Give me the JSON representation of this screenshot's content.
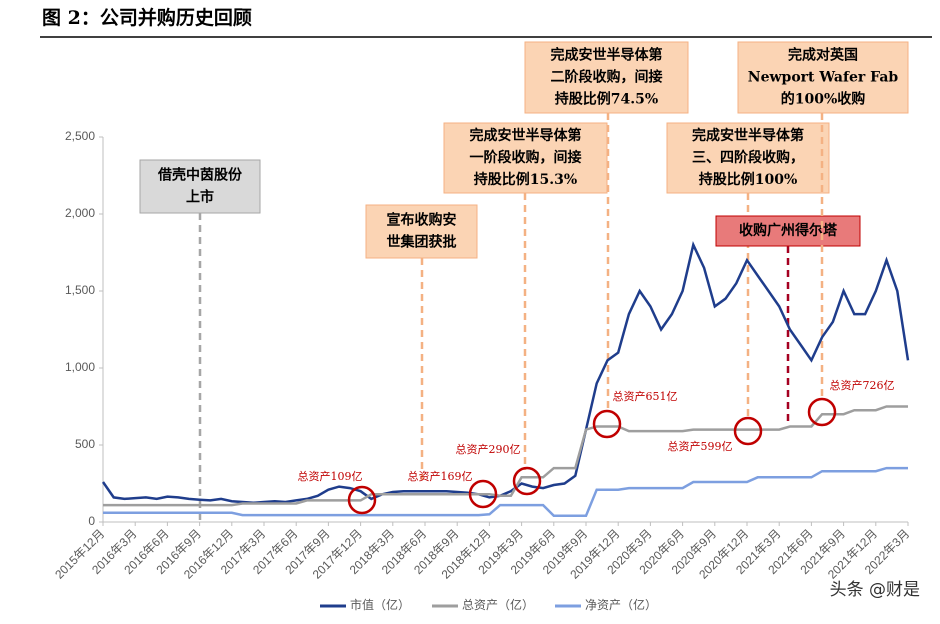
{
  "chart_data": {
    "type": "line",
    "title": "图 2：公司并购历史回顾",
    "categories": [
      "2015年12月",
      null,
      null,
      "2016年3月",
      null,
      null,
      "2016年6月",
      null,
      null,
      "2016年9月",
      null,
      null,
      "2016年12月",
      null,
      null,
      "2017年3月",
      null,
      null,
      "2017年6月",
      null,
      null,
      "2017年9月",
      null,
      null,
      "2017年12月",
      null,
      null,
      "2018年3月",
      null,
      null,
      "2018年6月",
      null,
      null,
      "2018年9月",
      null,
      null,
      "2018年12月",
      null,
      null,
      "2019年3月",
      null,
      null,
      "2019年6月",
      null,
      null,
      "2019年9月",
      null,
      null,
      "2019年12月",
      null,
      null,
      "2020年3月",
      null,
      null,
      "2020年6月",
      null,
      null,
      "2020年9月",
      null,
      null,
      "2020年12月",
      null,
      null,
      "2021年3月",
      null,
      null,
      "2021年6月",
      null,
      null,
      "2021年9月",
      null,
      null,
      "2021年12月",
      null,
      null,
      "2022年3月"
    ],
    "series": [
      {
        "name": "市值（亿）",
        "color": "#1f3d8c",
        "values": [
          260,
          160,
          150,
          155,
          160,
          150,
          165,
          160,
          150,
          145,
          140,
          150,
          135,
          130,
          125,
          130,
          135,
          130,
          140,
          150,
          170,
          210,
          230,
          220,
          200,
          150,
          180,
          195,
          200,
          200,
          200,
          200,
          200,
          195,
          190,
          180,
          160,
          170,
          200,
          250,
          230,
          220,
          240,
          250,
          300,
          600,
          900,
          1050,
          1100,
          1350,
          1500,
          1400,
          1250,
          1350,
          1500,
          1800,
          1650,
          1400,
          1450,
          1550,
          1700,
          1600,
          1500,
          1400,
          1250,
          1150,
          1050,
          1200,
          1300,
          1500,
          1350,
          1350,
          1500,
          1700,
          1500,
          1050
        ]
      },
      {
        "name": "总资产（亿）",
        "color": "#9e9e9e",
        "values": [
          110,
          110,
          110,
          110,
          110,
          110,
          110,
          110,
          110,
          110,
          110,
          110,
          110,
          120,
          120,
          120,
          120,
          120,
          120,
          140,
          140,
          140,
          140,
          140,
          140,
          180,
          180,
          180,
          180,
          180,
          180,
          180,
          180,
          180,
          180,
          180,
          180,
          170,
          170,
          290,
          290,
          290,
          350,
          350,
          350,
          600,
          620,
          620,
          620,
          590,
          590,
          590,
          590,
          590,
          590,
          600,
          600,
          600,
          600,
          600,
          600,
          600,
          600,
          600,
          620,
          620,
          620,
          700,
          700,
          700,
          726,
          726,
          726,
          750,
          750,
          750
        ]
      },
      {
        "name": "净资产（亿）",
        "color": "#7d9fe0",
        "values": [
          60,
          60,
          60,
          60,
          60,
          60,
          60,
          60,
          60,
          60,
          60,
          60,
          60,
          45,
          45,
          45,
          45,
          45,
          45,
          45,
          45,
          45,
          45,
          45,
          45,
          45,
          45,
          45,
          45,
          45,
          45,
          45,
          45,
          45,
          45,
          45,
          50,
          110,
          110,
          110,
          110,
          110,
          40,
          40,
          40,
          40,
          210,
          210,
          210,
          220,
          220,
          220,
          220,
          220,
          220,
          260,
          260,
          260,
          260,
          260,
          260,
          290,
          290,
          290,
          290,
          290,
          290,
          330,
          330,
          330,
          330,
          330,
          330,
          350,
          350,
          350
        ]
      }
    ],
    "ylim": [
      0,
      2500
    ],
    "yticks": [
      0,
      500,
      {
        "value": 1000,
        "label": "1,000"
      },
      {
        "value": 1500,
        "label": "1,500"
      },
      {
        "value": 2000,
        "label": "2,000"
      },
      {
        "value": 2500,
        "label": "2,500"
      }
    ],
    "annotations": [
      {
        "lines": [
          "借壳中茵股份",
          "上市"
        ]
      },
      {
        "lines": [
          "宣布收购安",
          "世集团获批"
        ]
      },
      {
        "lines": [
          "完成安世半导体第",
          "一阶段收购，间接",
          "持股比例15.3%"
        ]
      },
      {
        "lines": [
          "完成安世半导体第",
          "二阶段收购，间接",
          "持股比例74.5%"
        ]
      },
      {
        "lines": [
          "完成安世半导体第",
          "三、四阶段收购，",
          "持股比例100%"
        ]
      },
      {
        "lines": [
          "收购广州得尔塔"
        ]
      },
      {
        "lines": [
          "完成对英国",
          "Newport Wafer Fab",
          "的100%收购"
        ]
      }
    ],
    "notes": [
      "总资产109亿",
      "总资产169亿",
      "总资产290亿",
      "总资产651亿",
      "总资产599亿",
      "总资产726亿"
    ],
    "watermark": "头条 @财是"
  }
}
